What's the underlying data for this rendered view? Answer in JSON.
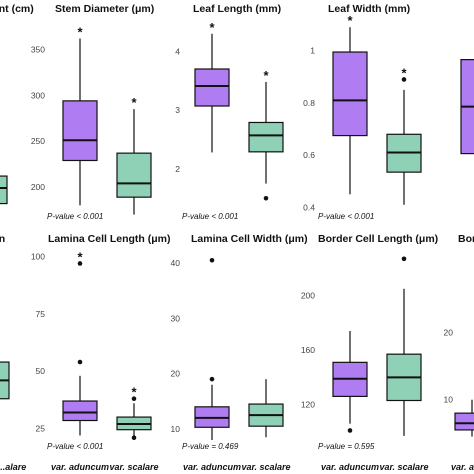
{
  "colors": {
    "purple": "#b07cf2",
    "green": "#8fd1b6"
  },
  "chart_data": [
    {
      "type": "boxplot",
      "title": "...nt (cm)",
      "yticks": [
        200
      ],
      "ylim": [
        175,
        380
      ],
      "pvalue": "",
      "series": [
        {
          "name": "var. scalare",
          "color": "green",
          "q1": 182,
          "median": 199,
          "q3": 212,
          "whisker_low": 175,
          "whisker_high": 225,
          "outliers": [],
          "star": false
        }
      ]
    },
    {
      "type": "boxplot",
      "title": "Stem Diameter (μm)",
      "yticks": [
        200,
        250,
        300,
        350
      ],
      "ylim": [
        175,
        380
      ],
      "pvalue": "P-value < 0.001",
      "series": [
        {
          "name": "var. aduncum",
          "color": "purple",
          "q1": 229,
          "median": 251,
          "q3": 294,
          "whisker_low": 180,
          "whisker_high": 362,
          "outliers": [],
          "star": true
        },
        {
          "name": "var. scalare",
          "color": "green",
          "q1": 189,
          "median": 204,
          "q3": 237,
          "whisker_low": 170,
          "whisker_high": 285,
          "outliers": [],
          "star": true
        }
      ]
    },
    {
      "type": "boxplot",
      "title": "Leaf Length (mm)",
      "yticks": [
        2,
        3,
        4
      ],
      "ylim": [
        1.3,
        4.5
      ],
      "pvalue": "P-value < 0.001",
      "series": [
        {
          "name": "var. aduncum",
          "color": "purple",
          "q1": 3.07,
          "median": 3.41,
          "q3": 3.7,
          "whisker_low": 2.28,
          "whisker_high": 4.3,
          "outliers": [],
          "star": true
        },
        {
          "name": "var. scalare",
          "color": "green",
          "q1": 2.29,
          "median": 2.57,
          "q3": 2.79,
          "whisker_low": 1.75,
          "whisker_high": 3.48,
          "outliers": [
            1.5
          ],
          "star": true
        }
      ]
    },
    {
      "type": "boxplot",
      "title": "Leaf Width (mm)",
      "yticks": [
        0.4,
        0.6,
        0.8,
        1.0
      ],
      "ylim": [
        0.39,
        1.11
      ],
      "pvalue": "P-value < 0.001",
      "series": [
        {
          "name": "var. aduncum",
          "color": "purple",
          "q1": 0.675,
          "median": 0.81,
          "q3": 0.995,
          "whisker_low": 0.45,
          "whisker_high": 1.09,
          "outliers": [],
          "star": true
        },
        {
          "name": "var. scalare",
          "color": "green",
          "q1": 0.535,
          "median": 0.61,
          "q3": 0.68,
          "whisker_low": 0.41,
          "whisker_high": 0.85,
          "outliers": [
            0.89
          ],
          "star": true
        }
      ]
    },
    {
      "type": "boxplot",
      "title": "",
      "yticks": [],
      "ylim": [
        0,
        1
      ],
      "pvalue": "",
      "series": [
        {
          "name": "var. aduncum",
          "color": "purple",
          "q1": 0.3,
          "median": 0.55,
          "q3": 0.8,
          "whisker_low": 0.05,
          "whisker_high": 0.98,
          "outliers": [],
          "star": false
        }
      ]
    },
    {
      "type": "boxplot",
      "title": "...n",
      "yticks": [],
      "ylim": [
        20,
        102
      ],
      "pvalue": "",
      "series": [
        {
          "name": "var. scalare",
          "color": "green",
          "q1": 38,
          "median": 46,
          "q3": 54,
          "whisker_low": 28,
          "whisker_high": 68,
          "outliers": [],
          "star": false
        }
      ]
    },
    {
      "type": "boxplot",
      "title": "Lamina Cell Length (μm)",
      "yticks": [
        25,
        50,
        75,
        100
      ],
      "ylim": [
        20,
        102
      ],
      "pvalue": "P-value < 0.001",
      "series": [
        {
          "name": "var. aduncum",
          "color": "purple",
          "q1": 28.5,
          "median": 32,
          "q3": 37,
          "whisker_low": 22,
          "whisker_high": 48,
          "outliers": [
            54,
            97
          ],
          "star": true
        },
        {
          "name": "var. scalare",
          "color": "green",
          "q1": 24.5,
          "median": 27,
          "q3": 30,
          "whisker_low": 20.5,
          "whisker_high": 36,
          "outliers": [
            38,
            21
          ],
          "star": true
        }
      ]
    },
    {
      "type": "boxplot",
      "title": "Lamina Cell Width (μm)",
      "yticks": [
        10,
        20,
        30,
        40
      ],
      "ylim": [
        8,
        42
      ],
      "pvalue": "P-value = 0.469",
      "series": [
        {
          "name": "var. aduncum",
          "color": "purple",
          "q1": 10.3,
          "median": 12,
          "q3": 14,
          "whisker_low": 8,
          "whisker_high": 18,
          "outliers": [
            19,
            40.5
          ],
          "star": false
        },
        {
          "name": "var. scalare",
          "color": "green",
          "q1": 10.5,
          "median": 12.5,
          "q3": 14.5,
          "whisker_low": 8.5,
          "whisker_high": 19,
          "outliers": [],
          "star": false
        }
      ]
    },
    {
      "type": "boxplot",
      "title": "Border Cell Length (μm)",
      "yticks": [
        120,
        160,
        200
      ],
      "ylim": [
        94,
        232
      ],
      "pvalue": "P-value = 0.595",
      "series": [
        {
          "name": "var. aduncum",
          "color": "purple",
          "q1": 126,
          "median": 139,
          "q3": 151,
          "whisker_low": 106,
          "whisker_high": 174,
          "outliers": [
            101
          ],
          "star": false
        },
        {
          "name": "var. scalare",
          "color": "green",
          "q1": 123,
          "median": 140,
          "q3": 157,
          "whisker_low": 97,
          "whisker_high": 205,
          "outliers": [
            227
          ],
          "star": false
        }
      ]
    },
    {
      "type": "boxplot",
      "title": "Bor...",
      "yticks": [
        10,
        20
      ],
      "ylim": [
        4,
        32
      ],
      "pvalue": "",
      "series": [
        {
          "name": "var. aduncum",
          "color": "purple",
          "q1": 5.5,
          "median": 6.5,
          "q3": 8,
          "whisker_low": 4.5,
          "whisker_high": 10,
          "outliers": [],
          "star": false
        }
      ]
    }
  ],
  "x_labels": {
    "left_partial": "...alare",
    "aduncum": "var. aduncum",
    "scalare": "var. scalare"
  },
  "star_symbol": "*"
}
